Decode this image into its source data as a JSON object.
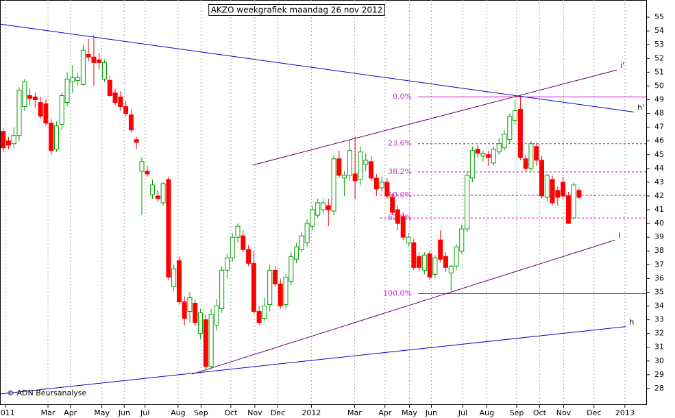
{
  "chart_data": {
    "type": "candlestick",
    "title": "AKZO weekgrafiek maandag 26 nov 2012",
    "credit": "© ADN Beursanalyse",
    "up_color": "#00a000",
    "down_color": "#ff0000",
    "open": [
      46.7,
      46.0,
      45.8,
      46.4,
      48.5,
      49.3,
      49.2,
      48.8,
      48.7,
      47.3,
      45.4,
      47.2,
      48.8,
      50.3,
      50.4,
      50.1,
      52.3,
      52.1,
      51.9,
      50.5,
      50.4,
      49.5,
      49.2,
      48.5,
      47.9,
      46.1,
      43.8,
      43.8,
      42.1,
      42.0,
      41.5,
      43.2,
      35.4,
      37.3,
      34.3,
      33.6,
      34.2,
      32.0,
      33.0,
      29.6,
      32.6,
      33.8,
      36.6,
      37.5,
      39.0,
      39.1,
      38.1,
      37.1,
      33.6,
      33.1,
      34.1,
      36.6,
      35.6,
      34.1,
      35.8,
      37.4,
      38.1,
      38.6,
      39.8,
      40.6,
      41.0,
      41.3,
      40.9,
      44.7,
      43.3,
      43.5,
      43.6,
      43.2,
      44.3,
      44.5,
      43.3,
      42.6,
      43.0,
      41.9,
      41.0,
      40.5,
      38.6,
      38.6,
      37.6,
      36.6,
      37.8,
      36.3,
      38.8,
      37.6,
      36.4,
      36.9,
      38.0,
      39.6,
      43.3,
      45.4,
      44.9,
      45.0,
      44.4,
      45.2,
      45.5,
      46.1,
      47.5,
      48.3,
      44.7,
      44.0,
      45.6,
      44.6,
      41.9,
      43.2,
      42.4,
      43.0,
      42.0,
      40.4,
      42.4
    ],
    "high": [
      46.9,
      46.3,
      47.0,
      49.9,
      50.5,
      49.8,
      49.5,
      49.2,
      49.0,
      47.6,
      47.4,
      49.5,
      51.0,
      51.5,
      50.9,
      53.0,
      53.4,
      53.7,
      52.4,
      51.9,
      50.7,
      49.8,
      49.6,
      48.9,
      48.3,
      46.3,
      44.8,
      44.2,
      43.2,
      42.4,
      43.0,
      43.4,
      37.0,
      37.6,
      34.7,
      35.0,
      34.5,
      33.8,
      33.4,
      33.8,
      34.5,
      36.9,
      37.8,
      39.3,
      40.0,
      39.5,
      38.4,
      38.0,
      34.0,
      34.6,
      37.0,
      36.9,
      36.0,
      36.3,
      37.9,
      38.6,
      39.4,
      40.3,
      41.3,
      41.8,
      41.8,
      41.8,
      45.0,
      45.3,
      43.8,
      46.1,
      46.3,
      45.6,
      45.1,
      44.9,
      43.6,
      43.4,
      43.3,
      42.2,
      41.3,
      40.8,
      39.3,
      38.9,
      37.9,
      37.9,
      38.0,
      37.7,
      39.5,
      37.9,
      37.0,
      38.5,
      39.9,
      43.8,
      45.6,
      45.7,
      45.3,
      45.3,
      45.6,
      46.2,
      46.8,
      48.0,
      49.0,
      49.3,
      45.0,
      46.0,
      45.9,
      44.9,
      43.6,
      43.5,
      42.7,
      43.4,
      42.3,
      43.0,
      42.6
    ],
    "low": [
      45.2,
      45.4,
      45.5,
      46.0,
      48.2,
      48.6,
      48.4,
      47.6,
      47.1,
      45.0,
      45.2,
      46.8,
      48.5,
      49.5,
      50.0,
      50.0,
      51.8,
      50.0,
      51.2,
      50.3,
      49.2,
      48.6,
      48.2,
      47.8,
      46.6,
      45.4,
      40.6,
      43.4,
      41.8,
      41.6,
      41.3,
      35.9,
      35.1,
      34.1,
      32.6,
      32.8,
      32.6,
      31.6,
      29.4,
      29.4,
      32.2,
      33.5,
      36.0,
      37.2,
      38.6,
      37.9,
      36.9,
      33.4,
      32.6,
      32.9,
      33.6,
      35.4,
      33.8,
      33.8,
      35.5,
      37.1,
      37.9,
      38.3,
      39.5,
      40.4,
      40.7,
      39.8,
      40.6,
      43.3,
      42.0,
      43.1,
      41.8,
      42.8,
      43.8,
      43.1,
      42.0,
      42.3,
      41.8,
      40.6,
      39.5,
      38.8,
      38.3,
      36.6,
      36.5,
      36.3,
      35.9,
      36.0,
      37.2,
      36.5,
      35.1,
      36.6,
      37.8,
      39.4,
      43.0,
      44.8,
      44.5,
      44.2,
      44.2,
      45.0,
      45.3,
      45.8,
      47.2,
      44.6,
      43.8,
      43.8,
      44.2,
      41.8,
      41.6,
      41.3,
      41.3,
      41.8,
      40.0,
      40.3,
      41.8
    ],
    "close": [
      45.5,
      45.7,
      46.4,
      49.7,
      50.3,
      49.1,
      49.0,
      47.8,
      47.3,
      45.3,
      47.1,
      49.3,
      50.5,
      50.6,
      50.6,
      52.6,
      52.1,
      51.7,
      51.7,
      51.7,
      49.3,
      48.8,
      48.5,
      48.0,
      46.8,
      45.9,
      44.5,
      43.6,
      42.8,
      41.8,
      42.9,
      36.1,
      36.7,
      34.3,
      33.1,
      34.6,
      32.8,
      33.5,
      29.6,
      33.4,
      34.0,
      36.6,
      37.5,
      39.0,
      39.8,
      38.1,
      37.1,
      33.6,
      32.8,
      34.0,
      36.6,
      35.6,
      34.0,
      36.1,
      37.6,
      38.3,
      39.1,
      40.0,
      41.0,
      41.5,
      41.5,
      41.0,
      44.7,
      43.5,
      43.5,
      45.3,
      43.1,
      45.2,
      44.6,
      43.3,
      42.5,
      43.0,
      42.0,
      40.8,
      40.0,
      39.0,
      39.0,
      36.8,
      36.8,
      37.7,
      36.1,
      37.5,
      37.4,
      36.8,
      36.9,
      38.3,
      39.6,
      43.5,
      45.3,
      45.1,
      45.1,
      44.8,
      45.4,
      45.8,
      46.5,
      47.8,
      48.2,
      44.8,
      44.0,
      45.8,
      44.6,
      42.0,
      43.5,
      41.5,
      41.9,
      42.0,
      40.0,
      42.8,
      41.9
    ],
    "xlim": [
      -0.6,
      120.6
    ],
    "xticks": [
      {
        "value": 0.4,
        "label": "2011"
      },
      {
        "value": 8.4,
        "label": "Mar"
      },
      {
        "value": 12.6,
        "label": "Apr"
      },
      {
        "value": 18.5,
        "label": "May"
      },
      {
        "value": 22.7,
        "label": "Jun"
      },
      {
        "value": 26.6,
        "label": "Jul"
      },
      {
        "value": 32.8,
        "label": "Aug"
      },
      {
        "value": 37.1,
        "label": "Sep"
      },
      {
        "value": 42.7,
        "label": "Oct"
      },
      {
        "value": 47.2,
        "label": "Nov"
      },
      {
        "value": 51.5,
        "label": "Dec"
      },
      {
        "value": 57.8,
        "label": "2012"
      },
      {
        "value": 65.9,
        "label": "Mar"
      },
      {
        "value": 71.6,
        "label": "Apr"
      },
      {
        "value": 76.2,
        "label": "May"
      },
      {
        "value": 80.3,
        "label": "Jun"
      },
      {
        "value": 86.2,
        "label": "Jul"
      },
      {
        "value": 90.7,
        "label": "Aug"
      },
      {
        "value": 96.3,
        "label": "Sep"
      },
      {
        "value": 100.6,
        "label": "Oct"
      },
      {
        "value": 105.1,
        "label": "Nov"
      },
      {
        "value": 110.8,
        "label": "Dec"
      },
      {
        "value": 116.6,
        "label": "2013"
      }
    ],
    "ylim": [
      26.85,
      56.25
    ],
    "yticks": [
      28,
      29,
      30,
      31,
      32,
      33,
      34,
      35,
      36,
      37,
      38,
      39,
      40,
      41,
      42,
      43,
      44,
      45,
      46,
      47,
      48,
      49,
      50,
      51,
      52,
      53,
      54,
      55
    ],
    "grid": true,
    "fib_color": "#cc00cc",
    "fib_levels": [
      {
        "label": "0.0%",
        "value": 49.2,
        "x_start": 77.8,
        "style": "solid"
      },
      {
        "label": "23.6%",
        "value": 45.8,
        "x_start": 77.8,
        "style": "dashed"
      },
      {
        "label": "38.2%",
        "value": 43.75,
        "x_start": 77.8,
        "style": "dashed"
      },
      {
        "label": "50.0%",
        "value": 42.05,
        "x_start": 70.7,
        "style": "dashed"
      },
      {
        "label": "61.8%",
        "value": 40.4,
        "x_start": 70.7,
        "style": "dashed"
      },
      {
        "label": "100.0%",
        "value": 34.9,
        "x_start": 77.8,
        "style": "solid"
      }
    ],
    "trendlines": [
      {
        "label": "h'",
        "color": "#0000cc",
        "x": [
          -0.6,
          118.3
        ],
        "y": [
          54.5,
          48.1
        ]
      },
      {
        "label": "i'",
        "color": "#660066",
        "x": [
          46.8,
          115.1
        ],
        "y": [
          44.24,
          51.16
        ]
      },
      {
        "label": "i",
        "color": "#660066",
        "x": [
          35.4,
          114.8
        ],
        "y": [
          29.04,
          38.8
        ]
      },
      {
        "label": "h",
        "color": "#0000cc",
        "x": [
          -0.6,
          116.8
        ],
        "y": [
          27.6,
          32.5
        ]
      }
    ]
  }
}
